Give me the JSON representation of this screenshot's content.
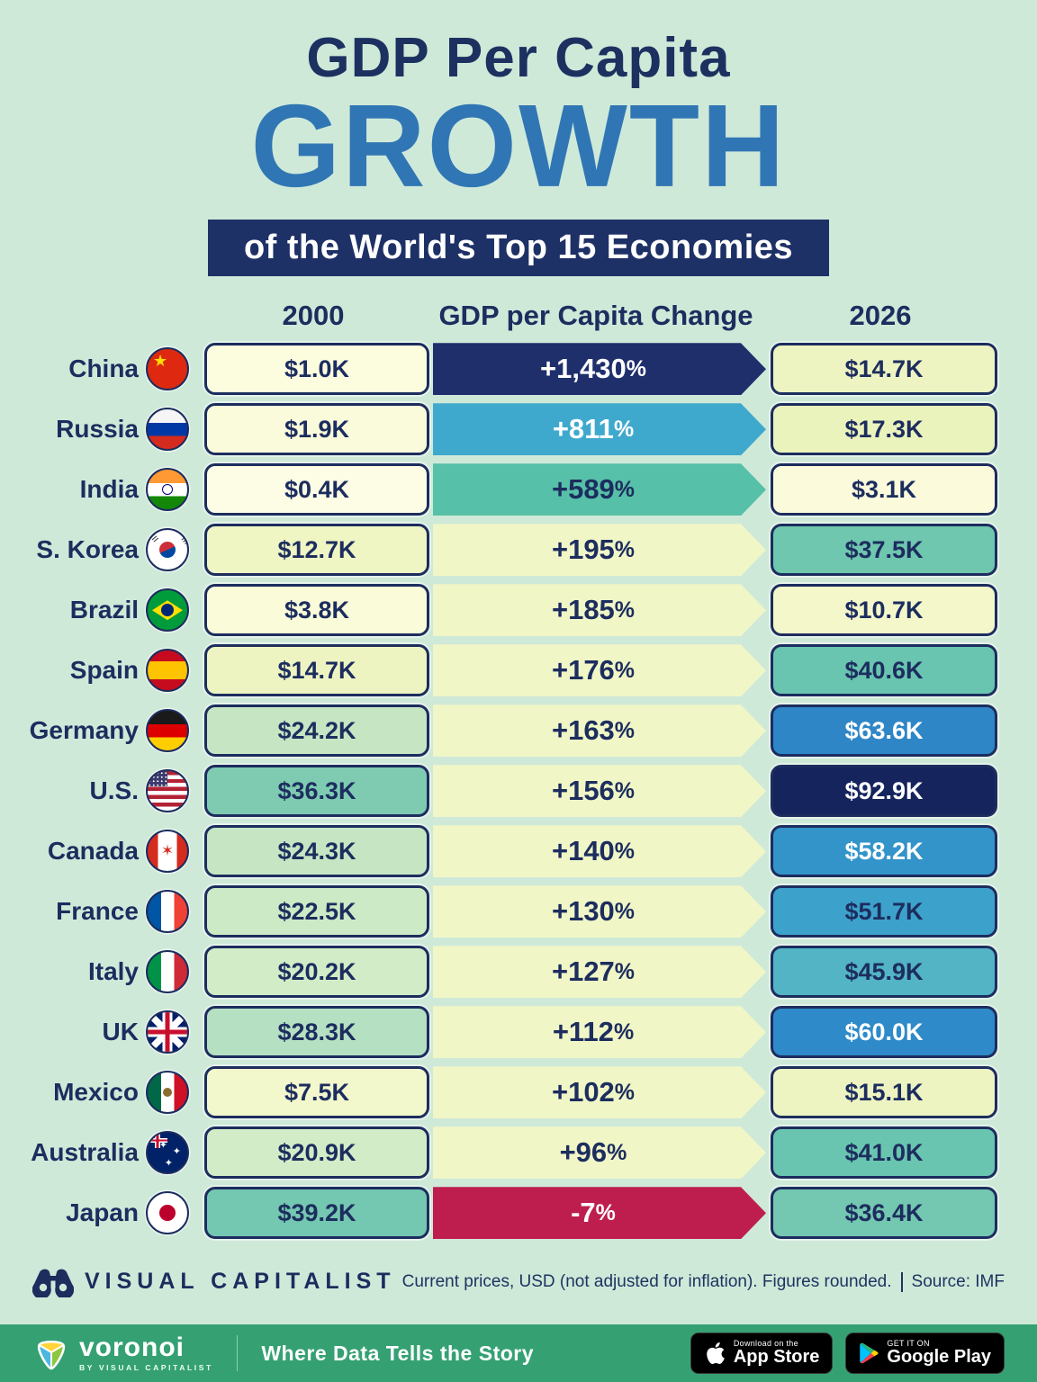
{
  "title": {
    "line1": "GDP Per Capita",
    "line2": "GROWTH",
    "banner": "of the World's Top 15 Economies"
  },
  "table": {
    "headers": {
      "y2000": "2000",
      "change": "GDP per Capita Change",
      "y2026": "2026"
    }
  },
  "rows": [
    {
      "country": "China",
      "flag": "china",
      "v2000": "$1.0K",
      "change": "+1,430%",
      "v2026": "$14.7K",
      "colors": {
        "box2000": "#fcfcdf",
        "arrow": "#1f2f6c",
        "arrowText": "#ffffff",
        "box2026": "#eef4c1",
        "text2026": "#1c2d5e"
      }
    },
    {
      "country": "Russia",
      "flag": "russia",
      "v2000": "$1.9K",
      "change": "+811%",
      "v2026": "$17.3K",
      "colors": {
        "box2000": "#fafbda",
        "arrow": "#3fa9cd",
        "arrowText": "#ffffff",
        "box2026": "#ebf3bd",
        "text2026": "#1c2d5e"
      }
    },
    {
      "country": "India",
      "flag": "india",
      "v2000": "$0.4K",
      "change": "+589%",
      "v2026": "$3.1K",
      "colors": {
        "box2000": "#fdfde6",
        "arrow": "#57c0a8",
        "arrowText": "#1c2d5e",
        "box2026": "#fbfbdc",
        "text2026": "#1c2d5e"
      }
    },
    {
      "country": "S. Korea",
      "flag": "skorea",
      "v2000": "$12.7K",
      "change": "+195%",
      "v2026": "$37.5K",
      "colors": {
        "box2000": "#eff5c3",
        "arrow": "#f0f6c6",
        "arrowText": "#1c2d5e",
        "box2026": "#6ec7ae",
        "text2026": "#1c2d5e"
      }
    },
    {
      "country": "Brazil",
      "flag": "brazil",
      "v2000": "$3.8K",
      "change": "+185%",
      "v2026": "$10.7K",
      "colors": {
        "box2000": "#fafbd8",
        "arrow": "#f0f6c6",
        "arrowText": "#1c2d5e",
        "box2026": "#f4f7ca",
        "text2026": "#1c2d5e"
      }
    },
    {
      "country": "Spain",
      "flag": "spain",
      "v2000": "$14.7K",
      "change": "+176%",
      "v2026": "$40.6K",
      "colors": {
        "box2000": "#eef4c1",
        "arrow": "#f0f6c6",
        "arrowText": "#1c2d5e",
        "box2026": "#69c5b0",
        "text2026": "#1c2d5e"
      }
    },
    {
      "country": "Germany",
      "flag": "germany",
      "v2000": "$24.2K",
      "change": "+163%",
      "v2026": "$63.6K",
      "colors": {
        "box2000": "#c6e6c3",
        "arrow": "#f0f6c6",
        "arrowText": "#1c2d5e",
        "box2026": "#2e86c6",
        "text2026": "#ffffff"
      }
    },
    {
      "country": "U.S.",
      "flag": "us",
      "v2000": "$36.3K",
      "change": "+156%",
      "v2026": "$92.9K",
      "colors": {
        "box2000": "#7ecbb2",
        "arrow": "#f0f6c6",
        "arrowText": "#1c2d5e",
        "box2026": "#16245e",
        "text2026": "#ffffff"
      }
    },
    {
      "country": "Canada",
      "flag": "canada",
      "v2000": "$24.3K",
      "change": "+140%",
      "v2026": "$58.2K",
      "colors": {
        "box2000": "#c6e6c3",
        "arrow": "#f0f6c6",
        "arrowText": "#1c2d5e",
        "box2026": "#3394c9",
        "text2026": "#ffffff"
      }
    },
    {
      "country": "France",
      "flag": "france",
      "v2000": "$22.5K",
      "change": "+130%",
      "v2026": "$51.7K",
      "colors": {
        "box2000": "#cdeac6",
        "arrow": "#f0f6c6",
        "arrowText": "#1c2d5e",
        "box2026": "#3da2cb",
        "text2026": "#1c2d5e"
      }
    },
    {
      "country": "Italy",
      "flag": "italy",
      "v2000": "$20.2K",
      "change": "+127%",
      "v2026": "$45.9K",
      "colors": {
        "box2000": "#d2ecc8",
        "arrow": "#f0f6c6",
        "arrowText": "#1c2d5e",
        "box2026": "#52b4c5",
        "text2026": "#1c2d5e"
      }
    },
    {
      "country": "UK",
      "flag": "uk",
      "v2000": "$28.3K",
      "change": "+112%",
      "v2026": "$60.0K",
      "colors": {
        "box2000": "#b5e0c2",
        "arrow": "#f0f6c6",
        "arrowText": "#1c2d5e",
        "box2026": "#2e8ac8",
        "text2026": "#ffffff"
      }
    },
    {
      "country": "Mexico",
      "flag": "mexico",
      "v2000": "$7.5K",
      "change": "+102%",
      "v2026": "$15.1K",
      "colors": {
        "box2000": "#f3f7cc",
        "arrow": "#f0f6c6",
        "arrowText": "#1c2d5e",
        "box2026": "#eef4c1",
        "text2026": "#1c2d5e"
      }
    },
    {
      "country": "Australia",
      "flag": "australia",
      "v2000": "$20.9K",
      "change": "+96%",
      "v2026": "$41.0K",
      "colors": {
        "box2000": "#d2ecc8",
        "arrow": "#f0f6c6",
        "arrowText": "#1c2d5e",
        "box2026": "#69c5b0",
        "text2026": "#1c2d5e"
      }
    },
    {
      "country": "Japan",
      "flag": "japan",
      "v2000": "$39.2K",
      "change": "-7%",
      "v2026": "$36.4K",
      "colors": {
        "box2000": "#74c7b0",
        "arrow": "#bd1e4e",
        "arrowText": "#ffffff",
        "box2026": "#74c7b0",
        "text2026": "#1c2d5e"
      }
    }
  ],
  "chart_data": {
    "type": "table",
    "title": "GDP Per Capita GROWTH of the World's Top 15 Economies",
    "categories": [
      "China",
      "Russia",
      "India",
      "S. Korea",
      "Brazil",
      "Spain",
      "Germany",
      "U.S.",
      "Canada",
      "France",
      "Italy",
      "UK",
      "Mexico",
      "Australia",
      "Japan"
    ],
    "series": [
      {
        "name": "GDP per capita 2000 (USD)",
        "values": [
          1000,
          1900,
          400,
          12700,
          3800,
          14700,
          24200,
          36300,
          24300,
          22500,
          20200,
          28300,
          7500,
          20900,
          39200
        ]
      },
      {
        "name": "GDP per capita 2026 (USD)",
        "values": [
          14700,
          17300,
          3100,
          37500,
          10700,
          40600,
          63600,
          92900,
          58200,
          51700,
          45900,
          60000,
          15100,
          41000,
          36400
        ]
      },
      {
        "name": "GDP per Capita Change (%)",
        "values": [
          1430,
          811,
          589,
          195,
          185,
          176,
          163,
          156,
          140,
          130,
          127,
          112,
          102,
          96,
          -7
        ]
      }
    ],
    "note": "Current prices, USD (not adjusted for inflation). Figures rounded.",
    "source": "IMF",
    "legend_position": "none",
    "grid": false
  },
  "footer": {
    "brand": "VISUAL CAPITALIST",
    "note": "Current prices, USD (not adjusted for inflation). Figures rounded.",
    "source": "Source: IMF"
  },
  "bottombar": {
    "brand": "voronoi",
    "byline": "BY VISUAL CAPITALIST",
    "tagline": "Where Data Tells the Story",
    "appstore": {
      "small": "Download on the",
      "big": "App Store"
    },
    "googleplay": {
      "small": "GET IT ON",
      "big": "Google Play"
    }
  },
  "colors": {
    "background": "#cfe9d9",
    "navy": "#1c2d5e",
    "growth_blue": "#3076b4",
    "banner_bg": "#1e3166",
    "bar_green": "#35a173",
    "negative_red": "#bd1e4e"
  }
}
